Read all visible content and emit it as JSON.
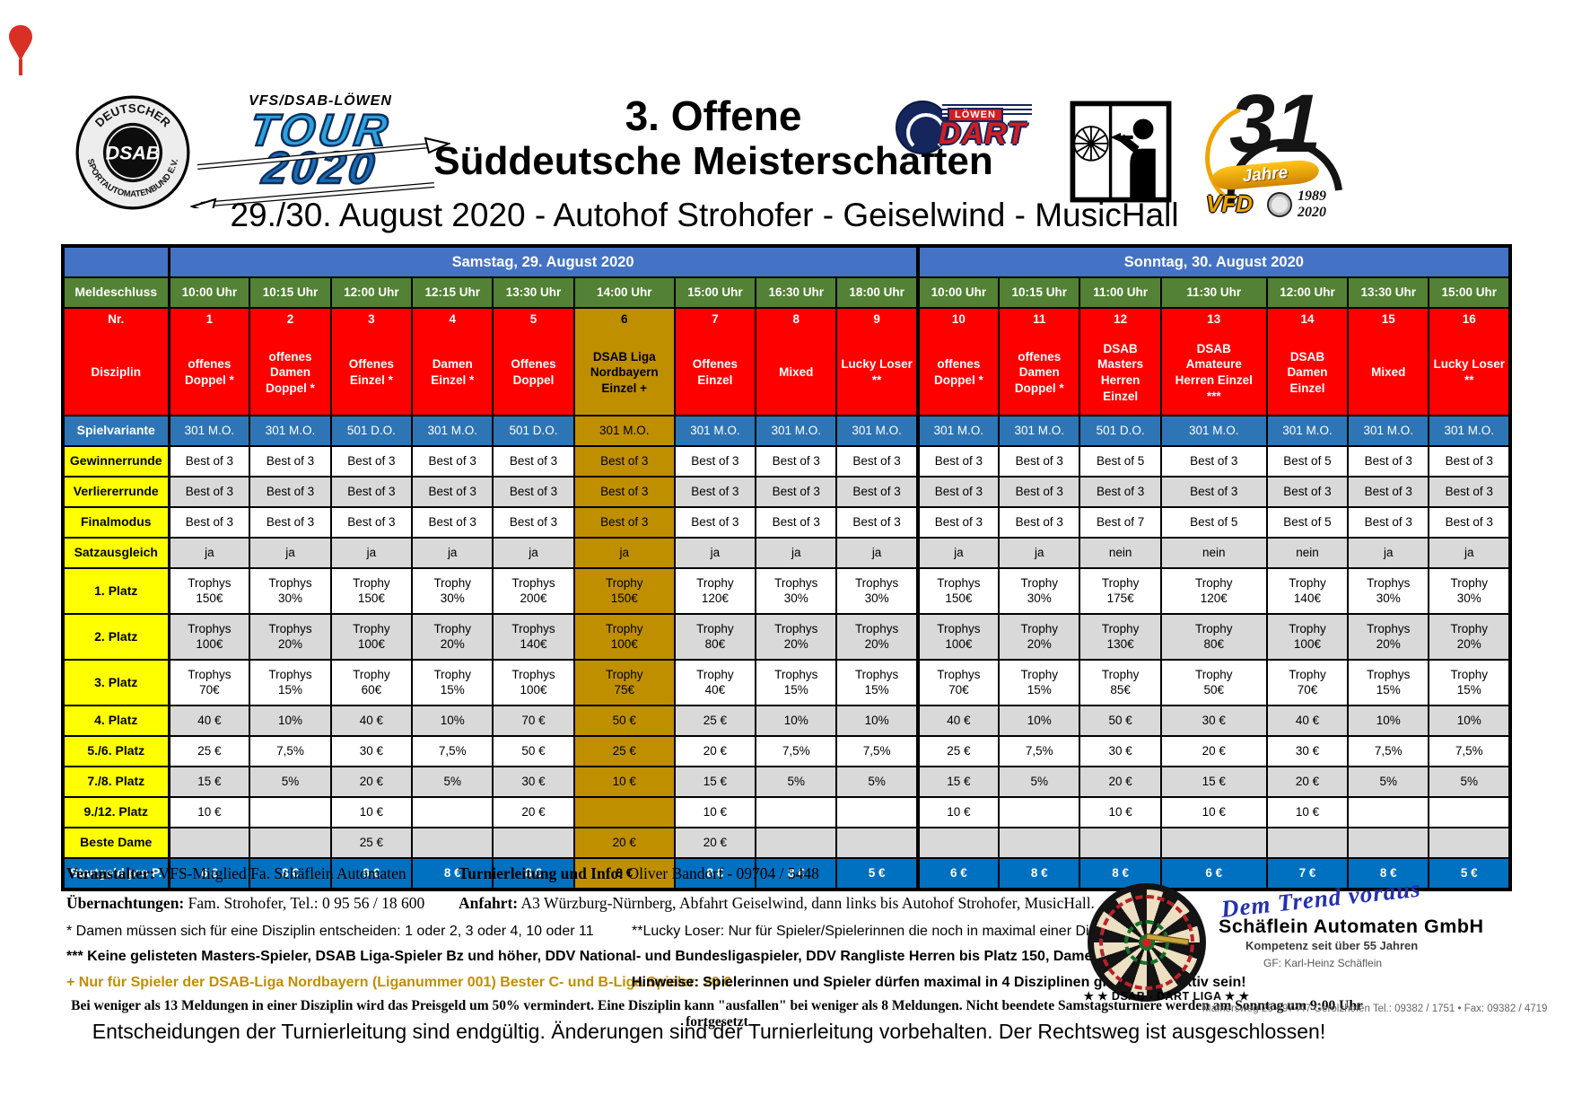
{
  "header": {
    "title_line1": "3. Offene",
    "title_line2": "Süddeutsche Meisterschaften",
    "subtitle": "29./30. August 2020 - Autohof Strohofer - Geiselwind - MusicHall"
  },
  "logos": {
    "dsab": {
      "top_arc": "DEUTSCHER",
      "bottom_arc": "SPORTAUTOMATENBUND E.V.",
      "center": "DSAB"
    },
    "tour": {
      "brand": "VFS/DSAB-LÖWEN",
      "line1": "TOUR",
      "line2": "2020"
    },
    "loewen_dart": {
      "loewen": "LÖWEN",
      "dart": "DART"
    },
    "thirty_one": {
      "number": "31",
      "jahre": "Jahre",
      "vfd": "VFD",
      "year_from": "1989",
      "year_to": "2020"
    }
  },
  "table": {
    "day_headers": [
      {
        "label": "Samstag, 29. August 2020",
        "colspan": 9
      },
      {
        "label": "Sonntag, 30. August 2020",
        "colspan": 7
      }
    ],
    "row_labels": {
      "meldeschluss": "Meldeschluss",
      "nr": "Nr.",
      "disziplin": "Disziplin",
      "spielvariante": "Spielvariante",
      "gewinnerrunde": "Gewinnerrunde",
      "verliererrunde": "Verliererrunde",
      "finalmodus": "Finalmodus",
      "satzausgleich": "Satzausgleich",
      "platz1": "1. Platz",
      "platz2": "2. Platz",
      "platz3": "3. Platz",
      "platz4": "4. Platz",
      "platz56": "5./6. Platz",
      "platz78": "7./8. Platz",
      "platz912": "9./12. Platz",
      "beste_dame": "Beste Dame",
      "startgeld": "Startgeld pro P."
    },
    "columns": [
      {
        "nr": "1",
        "meldeschluss": "10:00 Uhr",
        "disziplin": [
          "offenes",
          "Doppel *"
        ],
        "spielvariante": "301 M.O.",
        "gewinnerrunde": "Best of 3",
        "verliererrunde": "Best of 3",
        "finalmodus": "Best of 3",
        "satzausgleich": "ja",
        "platz1": [
          "Trophys",
          "150€"
        ],
        "platz2": [
          "Trophys",
          "100€"
        ],
        "platz3": [
          "Trophys",
          "70€"
        ],
        "platz4": "40 €",
        "platz56": "25 €",
        "platz78": "15 €",
        "platz912": "10 €",
        "beste_dame": "",
        "startgeld": "6 €",
        "highlight": false
      },
      {
        "nr": "2",
        "meldeschluss": "10:15 Uhr",
        "disziplin": [
          "offenes",
          "Damen",
          "Doppel *"
        ],
        "spielvariante": "301 M.O.",
        "gewinnerrunde": "Best of 3",
        "verliererrunde": "Best of 3",
        "finalmodus": "Best of 3",
        "satzausgleich": "ja",
        "platz1": [
          "Trophys",
          "30%"
        ],
        "platz2": [
          "Trophys",
          "20%"
        ],
        "platz3": [
          "Trophys",
          "15%"
        ],
        "platz4": "10%",
        "platz56": "7,5%",
        "platz78": "5%",
        "platz912": "",
        "beste_dame": "",
        "startgeld": "8 €",
        "highlight": false
      },
      {
        "nr": "3",
        "meldeschluss": "12:00 Uhr",
        "disziplin": [
          "Offenes",
          "Einzel *"
        ],
        "spielvariante": "501 D.O.",
        "gewinnerrunde": "Best of 3",
        "verliererrunde": "Best of 3",
        "finalmodus": "Best of 3",
        "satzausgleich": "ja",
        "platz1": [
          "Trophy",
          "150€"
        ],
        "platz2": [
          "Trophy",
          "100€"
        ],
        "platz3": [
          "Trophy",
          "60€"
        ],
        "platz4": "40 €",
        "platz56": "30 €",
        "platz78": "20 €",
        "platz912": "10 €",
        "beste_dame": "25 €",
        "startgeld": "9 €",
        "highlight": false
      },
      {
        "nr": "4",
        "meldeschluss": "12:15 Uhr",
        "disziplin": [
          "Damen",
          "Einzel *"
        ],
        "spielvariante": "301 M.O.",
        "gewinnerrunde": "Best of 3",
        "verliererrunde": "Best of 3",
        "finalmodus": "Best of 3",
        "satzausgleich": "ja",
        "platz1": [
          "Trophy",
          "30%"
        ],
        "platz2": [
          "Trophy",
          "20%"
        ],
        "platz3": [
          "Trophy",
          "15%"
        ],
        "platz4": "10%",
        "platz56": "7,5%",
        "platz78": "5%",
        "platz912": "",
        "beste_dame": "",
        "startgeld": "8 €",
        "highlight": false
      },
      {
        "nr": "5",
        "meldeschluss": "13:30 Uhr",
        "disziplin": [
          "Offenes",
          "Doppel"
        ],
        "spielvariante": "501 D.O.",
        "gewinnerrunde": "Best of 3",
        "verliererrunde": "Best of 3",
        "finalmodus": "Best of 3",
        "satzausgleich": "ja",
        "platz1": [
          "Trophys",
          "200€"
        ],
        "platz2": [
          "Trophys",
          "140€"
        ],
        "platz3": [
          "Trophys",
          "100€"
        ],
        "platz4": "70 €",
        "platz56": "50 €",
        "platz78": "30 €",
        "platz912": "20 €",
        "beste_dame": "",
        "startgeld": "8 €",
        "highlight": false
      },
      {
        "nr": "6",
        "meldeschluss": "14:00 Uhr",
        "disziplin": [
          "DSAB Liga",
          "Nordbayern",
          "Einzel +"
        ],
        "spielvariante": "301 M.O.",
        "gewinnerrunde": "Best of 3",
        "verliererrunde": "Best of 3",
        "finalmodus": "Best of 3",
        "satzausgleich": "ja",
        "platz1": [
          "Trophy",
          "150€"
        ],
        "platz2": [
          "Trophy",
          "100€"
        ],
        "platz3": [
          "Trophy",
          "75€"
        ],
        "platz4": "50 €",
        "platz56": "25 €",
        "platz78": "10 €",
        "platz912": "",
        "beste_dame": "20 €",
        "startgeld": "8 €",
        "highlight": true
      },
      {
        "nr": "7",
        "meldeschluss": "15:00 Uhr",
        "disziplin": [
          "Offenes",
          "Einzel"
        ],
        "spielvariante": "301 M.O.",
        "gewinnerrunde": "Best of 3",
        "verliererrunde": "Best of 3",
        "finalmodus": "Best of 3",
        "satzausgleich": "ja",
        "platz1": [
          "Trophy",
          "120€"
        ],
        "platz2": [
          "Trophy",
          "80€"
        ],
        "platz3": [
          "Trophy",
          "40€"
        ],
        "platz4": "25 €",
        "platz56": "20 €",
        "platz78": "15 €",
        "platz912": "10 €",
        "beste_dame": "20 €",
        "startgeld": "8 €",
        "highlight": false
      },
      {
        "nr": "8",
        "meldeschluss": "16:30 Uhr",
        "disziplin": [
          "Mixed"
        ],
        "spielvariante": "301 M.O.",
        "gewinnerrunde": "Best of 3",
        "verliererrunde": "Best of 3",
        "finalmodus": "Best of 3",
        "satzausgleich": "ja",
        "platz1": [
          "Trophys",
          "30%"
        ],
        "platz2": [
          "Trophys",
          "20%"
        ],
        "platz3": [
          "Trophys",
          "15%"
        ],
        "platz4": "10%",
        "platz56": "7,5%",
        "platz78": "5%",
        "platz912": "",
        "beste_dame": "",
        "startgeld": "8 €",
        "highlight": false
      },
      {
        "nr": "9",
        "meldeschluss": "18:00 Uhr",
        "disziplin": [
          "Lucky Loser",
          "**"
        ],
        "spielvariante": "301 M.O.",
        "gewinnerrunde": "Best of 3",
        "verliererrunde": "Best of 3",
        "finalmodus": "Best of 3",
        "satzausgleich": "ja",
        "platz1": [
          "Trophys",
          "30%"
        ],
        "platz2": [
          "Trophys",
          "20%"
        ],
        "platz3": [
          "Trophys",
          "15%"
        ],
        "platz4": "10%",
        "platz56": "7,5%",
        "platz78": "5%",
        "platz912": "",
        "beste_dame": "",
        "startgeld": "5 €",
        "highlight": false
      },
      {
        "nr": "10",
        "meldeschluss": "10:00 Uhr",
        "disziplin": [
          "offenes",
          "Doppel *"
        ],
        "spielvariante": "301 M.O.",
        "gewinnerrunde": "Best of 3",
        "verliererrunde": "Best of 3",
        "finalmodus": "Best of 3",
        "satzausgleich": "ja",
        "platz1": [
          "Trophys",
          "150€"
        ],
        "platz2": [
          "Trophys",
          "100€"
        ],
        "platz3": [
          "Trophys",
          "70€"
        ],
        "platz4": "40 €",
        "platz56": "25 €",
        "platz78": "15 €",
        "platz912": "10 €",
        "beste_dame": "",
        "startgeld": "6 €",
        "highlight": false
      },
      {
        "nr": "11",
        "meldeschluss": "10:15 Uhr",
        "disziplin": [
          "offenes",
          "Damen",
          "Doppel *"
        ],
        "spielvariante": "301 M.O.",
        "gewinnerrunde": "Best of 3",
        "verliererrunde": "Best of 3",
        "finalmodus": "Best of 3",
        "satzausgleich": "ja",
        "platz1": [
          "Trophy",
          "30%"
        ],
        "platz2": [
          "Trophy",
          "20%"
        ],
        "platz3": [
          "Trophy",
          "15%"
        ],
        "platz4": "10%",
        "platz56": "7,5%",
        "platz78": "5%",
        "platz912": "",
        "beste_dame": "",
        "startgeld": "8 €",
        "highlight": false
      },
      {
        "nr": "12",
        "meldeschluss": "11:00 Uhr",
        "disziplin": [
          "DSAB",
          "Masters",
          "Herren",
          "Einzel"
        ],
        "spielvariante": "501 D.O.",
        "gewinnerrunde": "Best of 5",
        "verliererrunde": "Best of 3",
        "finalmodus": "Best of 7",
        "satzausgleich": "nein",
        "platz1": [
          "Trophy",
          "175€"
        ],
        "platz2": [
          "Trophy",
          "130€"
        ],
        "platz3": [
          "Trophy",
          "85€"
        ],
        "platz4": "50 €",
        "platz56": "30 €",
        "platz78": "20 €",
        "platz912": "10 €",
        "beste_dame": "",
        "startgeld": "8 €",
        "highlight": false
      },
      {
        "nr": "13",
        "meldeschluss": "11:30 Uhr",
        "disziplin": [
          "DSAB",
          "Amateure",
          "Herren Einzel",
          "***"
        ],
        "spielvariante": "301 M.O.",
        "gewinnerrunde": "Best of 3",
        "verliererrunde": "Best of 3",
        "finalmodus": "Best of 5",
        "satzausgleich": "nein",
        "platz1": [
          "Trophy",
          "120€"
        ],
        "platz2": [
          "Trophy",
          "80€"
        ],
        "platz3": [
          "Trophy",
          "50€"
        ],
        "platz4": "30 €",
        "platz56": "20 €",
        "platz78": "15 €",
        "platz912": "10 €",
        "beste_dame": "",
        "startgeld": "6 €",
        "highlight": false
      },
      {
        "nr": "14",
        "meldeschluss": "12:00 Uhr",
        "disziplin": [
          "DSAB",
          "Damen",
          "Einzel"
        ],
        "spielvariante": "301 M.O.",
        "gewinnerrunde": "Best of 5",
        "verliererrunde": "Best of 3",
        "finalmodus": "Best of 5",
        "satzausgleich": "nein",
        "platz1": [
          "Trophy",
          "140€"
        ],
        "platz2": [
          "Trophy",
          "100€"
        ],
        "platz3": [
          "Trophy",
          "70€"
        ],
        "platz4": "40 €",
        "platz56": "30 €",
        "platz78": "20 €",
        "platz912": "10 €",
        "beste_dame": "",
        "startgeld": "7 €",
        "highlight": false
      },
      {
        "nr": "15",
        "meldeschluss": "13:30 Uhr",
        "disziplin": [
          "Mixed"
        ],
        "spielvariante": "301 M.O.",
        "gewinnerrunde": "Best of 3",
        "verliererrunde": "Best of 3",
        "finalmodus": "Best of 3",
        "satzausgleich": "ja",
        "platz1": [
          "Trophys",
          "30%"
        ],
        "platz2": [
          "Trophys",
          "20%"
        ],
        "platz3": [
          "Trophys",
          "15%"
        ],
        "platz4": "10%",
        "platz56": "7,5%",
        "platz78": "5%",
        "platz912": "",
        "beste_dame": "",
        "startgeld": "8 €",
        "highlight": false
      },
      {
        "nr": "16",
        "meldeschluss": "15:00 Uhr",
        "disziplin": [
          "Lucky Loser",
          "**"
        ],
        "spielvariante": "301 M.O.",
        "gewinnerrunde": "Best of 3",
        "verliererrunde": "Best of 3",
        "finalmodus": "Best of 3",
        "satzausgleich": "ja",
        "platz1": [
          "Trophy",
          "30%"
        ],
        "platz2": [
          "Trophy",
          "20%"
        ],
        "platz3": [
          "Trophy",
          "15%"
        ],
        "platz4": "10%",
        "platz56": "7,5%",
        "platz78": "5%",
        "platz912": "",
        "beste_dame": "",
        "startgeld": "5 €",
        "highlight": false
      }
    ]
  },
  "footer": {
    "veranstalter_label": "Veranstalter:",
    "veranstalter": " VFS-Mitglied Fa. Schäflein Automaten",
    "turnier_label": "Turnierleitung und Info:",
    "turnier": " Oliver Bandorf - 09704 / 5448",
    "uebernachtungen_label": "Übernachtungen:",
    "uebernachtungen": " Fam. Strohofer, Tel.: 0 95 56 / 18 600",
    "anfahrt_label": "Anfahrt:",
    "anfahrt": " A3 Würzburg-Nürnberg, Abfahrt Geiselwind, dann links bis Autohof Strohofer, MusicHall.",
    "note_damen": "* Damen müssen sich für eine Disziplin entscheiden: 1 oder 2, 3 oder 4, 10 oder 11",
    "note_lucky": "**Lucky Loser: Nur für Spieler/Spielerinnen die noch in maximal einer Disziplin aktiv sind.",
    "note_masters": "*** Keine gelisteten Masters-Spieler, DSAB Liga-Spieler Bz und höher, DDV National- und Bundesligaspieler, DDV Rangliste Herren bis Platz 150, Damen bis Platz 100",
    "note_plus": "+ Nur für Spieler der DSAB-Liga Nordbayern (Liganummer 001) Bester C- und B-Liga Spieler: 20 €",
    "note_hinweise": "Hinweise: Spielerinnen und Spieler dürfen maximal in 4 Disziplinen gleichzeitig aktiv sein!",
    "note_meldungen": "Bei weniger als 13 Meldungen in einer Disziplin wird das Preisgeld um 50% vermindert. Eine Disziplin kann \"ausfallen\" bei weniger als 8 Meldungen. Nicht beendete Samstagsturniere werden am Sonntag um 9:00 Uhr fortgesetzt",
    "note_final": "Entscheidungen der Turnierleitung sind endgültig. Änderungen sind der Turnierleitung vorbehalten. Der Rechtsweg ist ausgeschlossen!"
  },
  "schaeflein": {
    "slogan": "Dem Trend voraus",
    "company": "Schäflein Automaten GmbH",
    "competence": "Kompetenz seit über 55 Jahren",
    "gf": "GF: Karl-Heinz Schäflein",
    "dart_liga": "★ ★ DSAB - DART LIGA ★ ★",
    "address": "Mamersweg 26 • 97447 Gerolzhofen Tel.: 09382 / 1751 • Fax: 09382 / 4719"
  },
  "colors": {
    "red": "#FF0000",
    "gold": "#BF8F00",
    "day_blue": "#4472C4",
    "green": "#538135",
    "variant_blue": "#2E75B6",
    "startgeld_blue": "#0070C0",
    "yellow": "#FFFF00",
    "gray": "#D9D9D9"
  }
}
